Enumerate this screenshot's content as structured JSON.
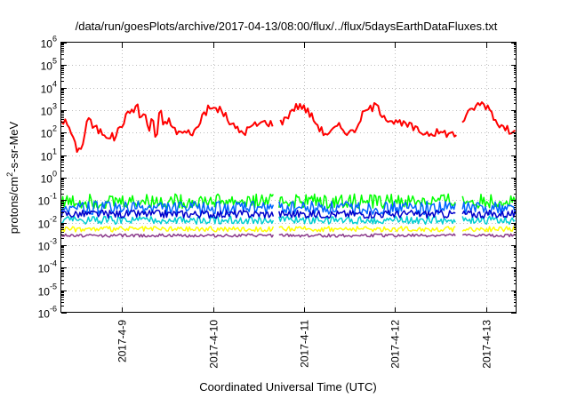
{
  "chart_data": {
    "type": "line",
    "title": "/data/run/goesPlots/archive/2017-04-13/08:00/flux/../flux/5daysEarthDataFluxes.txt",
    "xlabel": "Coordinated Universal Time (UTC)",
    "ylabel_parts": [
      "protons/cm",
      "2",
      "-s-sr-MeV"
    ],
    "yscale": "log",
    "ylim_exponents": [
      -6,
      6
    ],
    "y_ticks": [
      {
        "base": "10",
        "exp": "-6",
        "value": 1e-06
      },
      {
        "base": "10",
        "exp": "-5",
        "value": 1e-05
      },
      {
        "base": "10",
        "exp": "-4",
        "value": 0.0001
      },
      {
        "base": "10",
        "exp": "-3",
        "value": 0.001
      },
      {
        "base": "10",
        "exp": "-2",
        "value": 0.01
      },
      {
        "base": "10",
        "exp": "-1",
        "value": 0.1
      },
      {
        "base": "10",
        "exp": "0",
        "value": 1
      },
      {
        "base": "10",
        "exp": "1",
        "value": 10
      },
      {
        "base": "10",
        "exp": "2",
        "value": 100
      },
      {
        "base": "10",
        "exp": "3",
        "value": 1000
      },
      {
        "base": "10",
        "exp": "4",
        "value": 10000
      },
      {
        "base": "10",
        "exp": "5",
        "value": 100000
      },
      {
        "base": "10",
        "exp": "6",
        "value": 1000000
      }
    ],
    "xlim": [
      "2017-04-08T08:00",
      "2017-04-13T08:00"
    ],
    "x_ticks": [
      {
        "label": "2017-4-9",
        "x": "2017-04-09T00:00"
      },
      {
        "label": "2017-4-10",
        "x": "2017-04-10T00:00"
      },
      {
        "label": "2017-4-11",
        "x": "2017-04-11T00:00"
      },
      {
        "label": "2017-4-12",
        "x": "2017-04-12T00:00"
      },
      {
        "label": "2017-4-13",
        "x": "2017-04-13T00:00"
      }
    ],
    "grid": true,
    "gaps": [
      [
        "2017-04-10T16:00",
        "2017-04-10T17:20"
      ],
      [
        "2017-04-12T16:10",
        "2017-04-12T17:40"
      ]
    ],
    "series": [
      {
        "color": "#ff0000",
        "style": "spiky",
        "noise": 0.18,
        "points": [
          [
            "2017-04-08T08:00",
            400
          ],
          [
            "2017-04-08T10:00",
            200
          ],
          [
            "2017-04-08T11:30",
            30
          ],
          [
            "2017-04-08T12:30",
            15
          ],
          [
            "2017-04-08T14:00",
            50
          ],
          [
            "2017-04-08T15:00",
            700
          ],
          [
            "2017-04-08T16:00",
            200
          ],
          [
            "2017-04-08T18:00",
            120
          ],
          [
            "2017-04-08T20:00",
            80
          ],
          [
            "2017-04-08T22:00",
            60
          ],
          [
            "2017-04-09T00:00",
            250
          ],
          [
            "2017-04-09T02:00",
            900
          ],
          [
            "2017-04-09T04:00",
            1500
          ],
          [
            "2017-04-09T05:00",
            400
          ],
          [
            "2017-04-09T06:00",
            1000
          ],
          [
            "2017-04-09T07:00",
            80
          ],
          [
            "2017-04-09T08:00",
            800
          ],
          [
            "2017-04-09T09:00",
            30
          ],
          [
            "2017-04-09T10:00",
            1200
          ],
          [
            "2017-04-09T11:00",
            200
          ],
          [
            "2017-04-09T12:00",
            400
          ],
          [
            "2017-04-09T14:00",
            120
          ],
          [
            "2017-04-09T16:00",
            100
          ],
          [
            "2017-04-09T18:00",
            100
          ],
          [
            "2017-04-09T20:00",
            150
          ],
          [
            "2017-04-09T21:00",
            600
          ],
          [
            "2017-04-09T23:00",
            1200
          ],
          [
            "2017-04-10T02:00",
            1100
          ],
          [
            "2017-04-10T04:00",
            350
          ],
          [
            "2017-04-10T06:00",
            150
          ],
          [
            "2017-04-10T08:00",
            100
          ],
          [
            "2017-04-10T10:00",
            180
          ],
          [
            "2017-04-10T12:00",
            250
          ],
          [
            "2017-04-10T14:00",
            300
          ],
          [
            "2017-04-10T16:00",
            250
          ],
          [
            "2017-04-10T17:20",
            250
          ],
          [
            "2017-04-10T19:00",
            400
          ],
          [
            "2017-04-10T21:00",
            1200
          ],
          [
            "2017-04-10T23:00",
            1700
          ],
          [
            "2017-04-11T01:00",
            900
          ],
          [
            "2017-04-11T03:00",
            300
          ],
          [
            "2017-04-11T05:00",
            100
          ],
          [
            "2017-04-11T07:00",
            100
          ],
          [
            "2017-04-11T09:00",
            200
          ],
          [
            "2017-04-11T11:00",
            120
          ],
          [
            "2017-04-11T13:00",
            100
          ],
          [
            "2017-04-11T15:00",
            500
          ],
          [
            "2017-04-11T17:00",
            1200
          ],
          [
            "2017-04-11T19:00",
            1500
          ],
          [
            "2017-04-11T21:00",
            600
          ],
          [
            "2017-04-11T23:00",
            350
          ],
          [
            "2017-04-12T01:00",
            250
          ],
          [
            "2017-04-12T04:00",
            200
          ],
          [
            "2017-04-12T06:00",
            120
          ],
          [
            "2017-04-12T08:00",
            100
          ],
          [
            "2017-04-12T10:00",
            100
          ],
          [
            "2017-04-12T13:00",
            100
          ],
          [
            "2017-04-12T16:10",
            80
          ],
          [
            "2017-04-12T17:40",
            350
          ],
          [
            "2017-04-12T19:00",
            600
          ],
          [
            "2017-04-12T21:00",
            1500
          ],
          [
            "2017-04-12T23:00",
            2000
          ],
          [
            "2017-04-13T01:00",
            1200
          ],
          [
            "2017-04-13T02:30",
            350
          ],
          [
            "2017-04-13T04:00",
            200
          ],
          [
            "2017-04-13T06:00",
            120
          ],
          [
            "2017-04-13T08:00",
            200
          ]
        ]
      },
      {
        "color": "#00ff00",
        "style": "band",
        "noise": 0.32,
        "points": [
          [
            "2017-04-08T08:00",
            0.09
          ],
          [
            "2017-04-13T08:00",
            0.09
          ]
        ]
      },
      {
        "color": "#0066ff",
        "style": "band",
        "noise": 0.3,
        "points": [
          [
            "2017-04-08T08:00",
            0.045
          ],
          [
            "2017-04-13T08:00",
            0.045
          ]
        ]
      },
      {
        "color": "#00ced1",
        "style": "band",
        "noise": 0.18,
        "points": [
          [
            "2017-04-08T08:00",
            0.013
          ],
          [
            "2017-04-13T08:00",
            0.013
          ]
        ]
      },
      {
        "color": "#0000cc",
        "style": "band",
        "noise": 0.18,
        "points": [
          [
            "2017-04-08T08:00",
            0.024
          ],
          [
            "2017-04-13T08:00",
            0.024
          ]
        ]
      },
      {
        "color": "#ffff00",
        "style": "band",
        "noise": 0.12,
        "points": [
          [
            "2017-04-08T08:00",
            0.0052
          ],
          [
            "2017-04-13T08:00",
            0.0052
          ]
        ]
      },
      {
        "color": "#8b3a8b",
        "style": "band",
        "noise": 0.07,
        "points": [
          [
            "2017-04-08T08:00",
            0.0027
          ],
          [
            "2017-04-13T08:00",
            0.0027
          ]
        ]
      }
    ]
  }
}
